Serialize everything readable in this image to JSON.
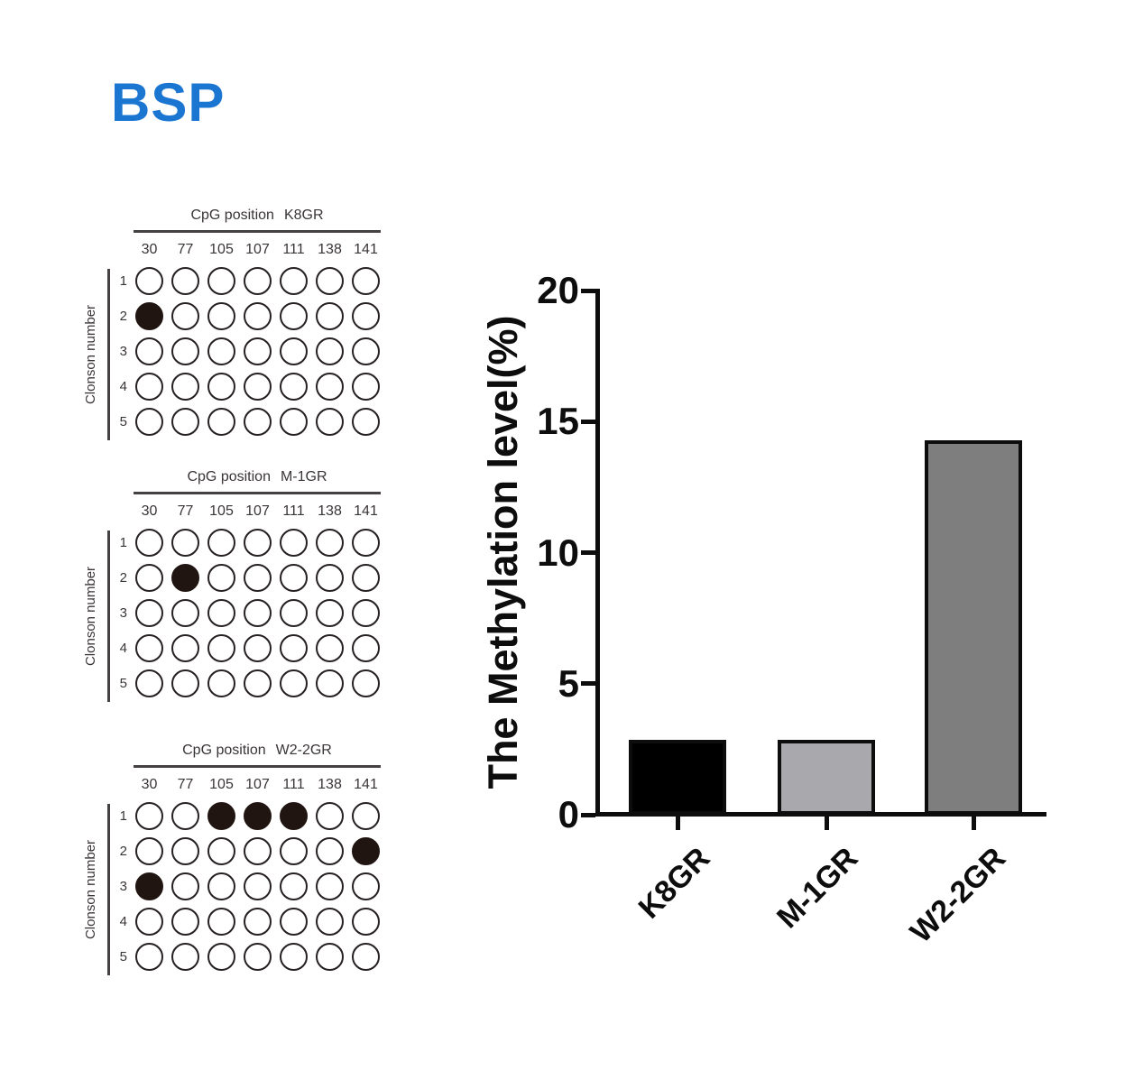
{
  "title": "BSP",
  "title_color": "#1b76d1",
  "dot_panels": [
    {
      "title_prefix": "CpG position",
      "name": "K8GR",
      "columns": [
        "30",
        "77",
        "105",
        "107",
        "111",
        "138",
        "141"
      ],
      "rows": [
        "1",
        "2",
        "3",
        "4",
        "5"
      ],
      "row_axis_label": "Clonson number",
      "filled_cells": [
        [
          1,
          0
        ]
      ]
    },
    {
      "title_prefix": "CpG position",
      "name": "M-1GR",
      "columns": [
        "30",
        "77",
        "105",
        "107",
        "111",
        "138",
        "141"
      ],
      "rows": [
        "1",
        "2",
        "3",
        "4",
        "5"
      ],
      "row_axis_label": "Clonson number",
      "filled_cells": [
        [
          1,
          1
        ]
      ]
    },
    {
      "title_prefix": "CpG position",
      "name": "W2-2GR",
      "columns": [
        "30",
        "77",
        "105",
        "107",
        "111",
        "138",
        "141"
      ],
      "rows": [
        "1",
        "2",
        "3",
        "4",
        "5"
      ],
      "row_axis_label": "Clonson number",
      "filled_cells": [
        [
          0,
          2
        ],
        [
          0,
          3
        ],
        [
          0,
          4
        ],
        [
          1,
          6
        ],
        [
          2,
          0
        ]
      ]
    }
  ],
  "chart_data": {
    "type": "bar",
    "categories": [
      "K8GR",
      "M-1GR",
      "W2-2GR"
    ],
    "values": [
      2.86,
      2.86,
      14.29
    ],
    "bar_colors": [
      "#000000",
      "#a9a9ad",
      "#7e7e7e"
    ],
    "bar_border_color": "#0d0d0d",
    "title": "",
    "xlabel": "",
    "ylabel": "The Methylation level(%)",
    "ylim": [
      0,
      20
    ],
    "yticks": [
      0,
      5,
      10,
      15,
      20
    ],
    "grid": false,
    "legend": false
  }
}
